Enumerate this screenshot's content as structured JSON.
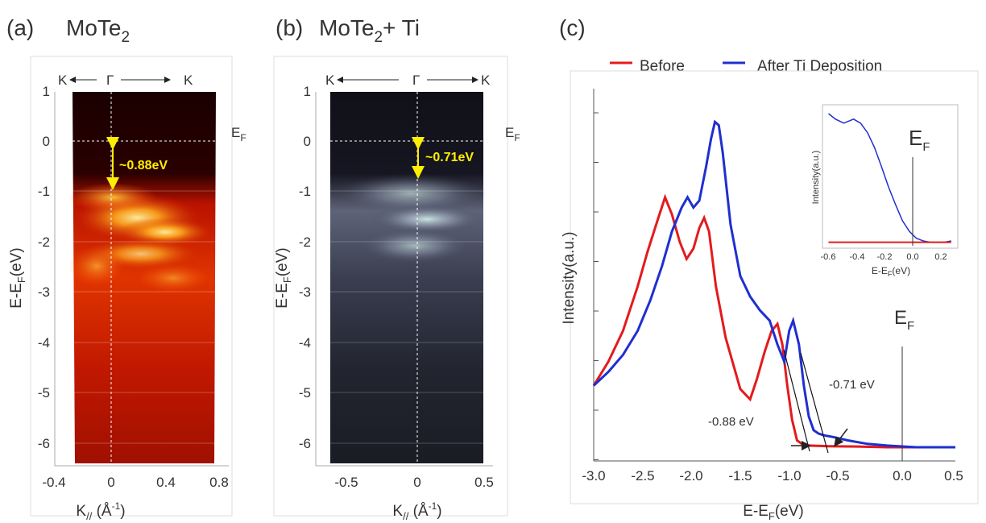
{
  "panels": [
    {
      "tag": "(a)",
      "title_main": "MoTe",
      "title_sub": "2",
      "title_tail": "",
      "kpath": {
        "left": "K",
        "center": "Γ",
        "right": "K"
      },
      "fermi_label_main": "E",
      "fermi_label_sub": "F",
      "gap_label": "~0.88eV",
      "xlabel_main": "K",
      "xlabel_sub": "//",
      "xlabel_unit_open": " (Å",
      "xlabel_unit_sup": "-1",
      "xlabel_unit_close": ")",
      "ylabel_a": "E-E",
      "ylabel_sub": "F",
      "ylabel_b": "(eV)",
      "xticks": [
        "-0.4",
        "0",
        "0.4",
        "0.8"
      ],
      "yticks": [
        "1",
        "0",
        "-1",
        "-2",
        "-3",
        "-4",
        "-5",
        "-6"
      ],
      "colormap": "hot",
      "accent": "#ffee00"
    },
    {
      "tag": "(b)",
      "title_main": "MoTe",
      "title_sub": "2",
      "title_tail": "+ Ti",
      "kpath": {
        "left": "K",
        "center": "Γ",
        "right": "K"
      },
      "fermi_label_main": "E",
      "fermi_label_sub": "F",
      "gap_label": "~0.71eV",
      "xlabel_main": "K",
      "xlabel_sub": "//",
      "xlabel_unit_open": " (Å",
      "xlabel_unit_sup": "-1",
      "xlabel_unit_close": ")",
      "ylabel_a": "E-E",
      "ylabel_sub": "F",
      "ylabel_b": "(eV)",
      "xticks": [
        "-0.5",
        "0",
        "0.5"
      ],
      "yticks": [
        "1",
        "0",
        "-1",
        "-2",
        "-3",
        "-4",
        "-5",
        "-6"
      ],
      "colormap": "bone",
      "accent": "#ffee00"
    }
  ],
  "panel_c": {
    "tag": "(c)",
    "legend": [
      {
        "name": "Before",
        "color": "#e41a1c"
      },
      {
        "name": "After Ti Deposition",
        "color": "#1f2fd0"
      }
    ],
    "ylabel": "Intensity(a.u.)",
    "xlabel_a": "E-E",
    "xlabel_sub": "F",
    "xlabel_b": "(eV)",
    "fermi_main": "E",
    "fermi_sub": "F",
    "ann_before": "-0.88 eV",
    "ann_after": "-0.71 eV",
    "xticks": [
      "-3.0",
      "-2.5",
      "-2.0",
      "-1.5",
      "-1.0",
      "-0.5",
      "0.0",
      "0.5"
    ],
    "inset": {
      "ylabel": "Intensity(a.u.)",
      "xlabel": "E-EF(eV)",
      "xlabel_a": "E-E",
      "xlabel_sub": "F",
      "xlabel_b": "(eV)",
      "fermi_main": "E",
      "fermi_sub": "F",
      "xticks": [
        "-0.6",
        "-0.4",
        "-0.2",
        "0.0",
        "0.2"
      ]
    }
  },
  "chart_data": [
    {
      "type": "line",
      "panel": "(c)",
      "xlim": [
        -3.0,
        0.7
      ],
      "series": [
        {
          "name": "Before",
          "x": [
            -3.0,
            -2.85,
            -2.7,
            -2.55,
            -2.45,
            -2.35,
            -2.27,
            -2.2,
            -2.12,
            -2.05,
            -1.98,
            -1.92,
            -1.87,
            -1.82,
            -1.75,
            -1.65,
            -1.5,
            -1.4,
            -1.33,
            -1.25,
            -1.18,
            -1.12,
            -1.07,
            -1.02,
            -0.97,
            -0.92,
            -0.87,
            -0.8,
            -0.6,
            -0.3,
            0.0,
            0.3,
            0.7
          ],
          "y": [
            0.18,
            0.25,
            0.34,
            0.47,
            0.57,
            0.66,
            0.73,
            0.68,
            0.6,
            0.55,
            0.58,
            0.64,
            0.67,
            0.63,
            0.47,
            0.32,
            0.17,
            0.14,
            0.2,
            0.28,
            0.34,
            0.36,
            0.3,
            0.18,
            0.08,
            0.02,
            0.01,
            0.005,
            0.003,
            0.002,
            0.0,
            0.0,
            0.0
          ]
        },
        {
          "name": "After Ti Deposition",
          "x": [
            -3.0,
            -2.85,
            -2.7,
            -2.55,
            -2.42,
            -2.3,
            -2.2,
            -2.1,
            -2.04,
            -1.98,
            -1.92,
            -1.85,
            -1.8,
            -1.76,
            -1.72,
            -1.68,
            -1.6,
            -1.5,
            -1.4,
            -1.3,
            -1.2,
            -1.12,
            -1.05,
            -1.0,
            -0.96,
            -0.9,
            -0.85,
            -0.8,
            -0.75,
            -0.7,
            -0.65,
            -0.55,
            -0.4,
            -0.2,
            0.0,
            0.3,
            0.7
          ],
          "y": [
            0.18,
            0.22,
            0.27,
            0.34,
            0.43,
            0.53,
            0.63,
            0.7,
            0.73,
            0.7,
            0.72,
            0.82,
            0.9,
            0.95,
            0.94,
            0.86,
            0.65,
            0.5,
            0.44,
            0.4,
            0.37,
            0.3,
            0.25,
            0.34,
            0.37,
            0.3,
            0.18,
            0.09,
            0.05,
            0.04,
            0.035,
            0.03,
            0.02,
            0.01,
            0.005,
            0.0,
            0.0
          ]
        }
      ]
    },
    {
      "type": "line",
      "panel": "(c) inset",
      "xlim": [
        -0.65,
        0.28
      ],
      "series": [
        {
          "name": "After Ti Deposition",
          "x": [
            -0.63,
            -0.58,
            -0.52,
            -0.45,
            -0.4,
            -0.35,
            -0.3,
            -0.25,
            -0.2,
            -0.15,
            -0.1,
            -0.05,
            0.0,
            0.05,
            0.1,
            0.15,
            0.2,
            0.25
          ],
          "y": [
            0.97,
            0.93,
            0.9,
            0.93,
            0.9,
            0.83,
            0.72,
            0.58,
            0.43,
            0.3,
            0.18,
            0.1,
            0.05,
            0.03,
            0.02,
            0.02,
            0.02,
            0.03
          ]
        },
        {
          "name": "Before",
          "x": [
            -0.63,
            -0.4,
            -0.2,
            0.0,
            0.25
          ],
          "y": [
            0.02,
            0.02,
            0.02,
            0.02,
            0.02
          ]
        }
      ]
    }
  ]
}
